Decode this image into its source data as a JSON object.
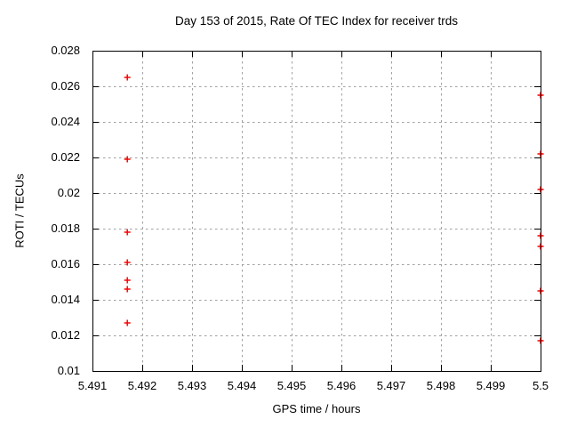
{
  "page": {
    "background": "#ffffff",
    "text_color": "#000000",
    "border_color": "#000000",
    "grid_color": "#a0a0a0"
  },
  "chart_data": {
    "type": "scatter",
    "title": "Day 153 of 2015, Rate Of TEC Index for receiver trds",
    "xlabel": "GPS time / hours",
    "ylabel": "ROTI / TECUs",
    "xlim": [
      5.491,
      5.5
    ],
    "ylim": [
      0.01,
      0.028
    ],
    "xticks": [
      5.491,
      5.492,
      5.493,
      5.494,
      5.495,
      5.496,
      5.497,
      5.498,
      5.499,
      5.5
    ],
    "xtick_labels": [
      "5.491",
      "5.492",
      "5.493",
      "5.494",
      "5.495",
      "5.496",
      "5.497",
      "5.498",
      "5.499",
      "5.5"
    ],
    "yticks": [
      0.01,
      0.012,
      0.014,
      0.016,
      0.018,
      0.02,
      0.022,
      0.024,
      0.026,
      0.028
    ],
    "ytick_labels": [
      "0.01",
      "0.012",
      "0.014",
      "0.016",
      "0.018",
      "0.02",
      "0.022",
      "0.024",
      "0.026",
      "0.028"
    ],
    "grid": true,
    "legend": "none",
    "marker": {
      "shape": "plus",
      "color": "#ff0000",
      "size": 7
    },
    "series": [
      {
        "name": "trds ROTI",
        "points": [
          [
            5.4917,
            0.0265
          ],
          [
            5.4917,
            0.0219
          ],
          [
            5.4917,
            0.0178
          ],
          [
            5.4917,
            0.0161
          ],
          [
            5.4917,
            0.0151
          ],
          [
            5.4917,
            0.0146
          ],
          [
            5.4917,
            0.0127
          ],
          [
            5.5,
            0.0255
          ],
          [
            5.5,
            0.0222
          ],
          [
            5.5,
            0.0202
          ],
          [
            5.5,
            0.0176
          ],
          [
            5.5,
            0.017
          ],
          [
            5.5,
            0.0145
          ],
          [
            5.5,
            0.0117
          ]
        ]
      }
    ]
  }
}
